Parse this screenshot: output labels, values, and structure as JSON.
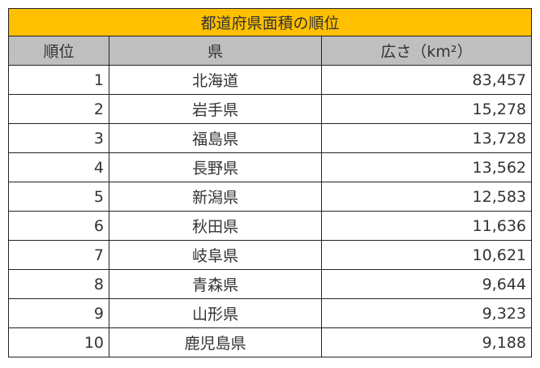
{
  "title": "都道府県面積の順位",
  "headers": [
    "順位",
    "県",
    "広さ（km²）"
  ],
  "colors": {
    "title_bg": "#ffc000",
    "header_bg": "#bfbfbf"
  },
  "rows": [
    {
      "rank": "1",
      "pref": "北海道",
      "area": "83,457"
    },
    {
      "rank": "2",
      "pref": "岩手県",
      "area": "15,278"
    },
    {
      "rank": "3",
      "pref": "福島県",
      "area": "13,728"
    },
    {
      "rank": "4",
      "pref": "長野県",
      "area": "13,562"
    },
    {
      "rank": "5",
      "pref": "新潟県",
      "area": "12,583"
    },
    {
      "rank": "6",
      "pref": "秋田県",
      "area": "11,636"
    },
    {
      "rank": "7",
      "pref": "岐阜県",
      "area": "10,621"
    },
    {
      "rank": "8",
      "pref": "青森県",
      "area": "9,644"
    },
    {
      "rank": "9",
      "pref": "山形県",
      "area": "9,323"
    },
    {
      "rank": "10",
      "pref": "鹿児島県",
      "area": "9,188"
    }
  ]
}
